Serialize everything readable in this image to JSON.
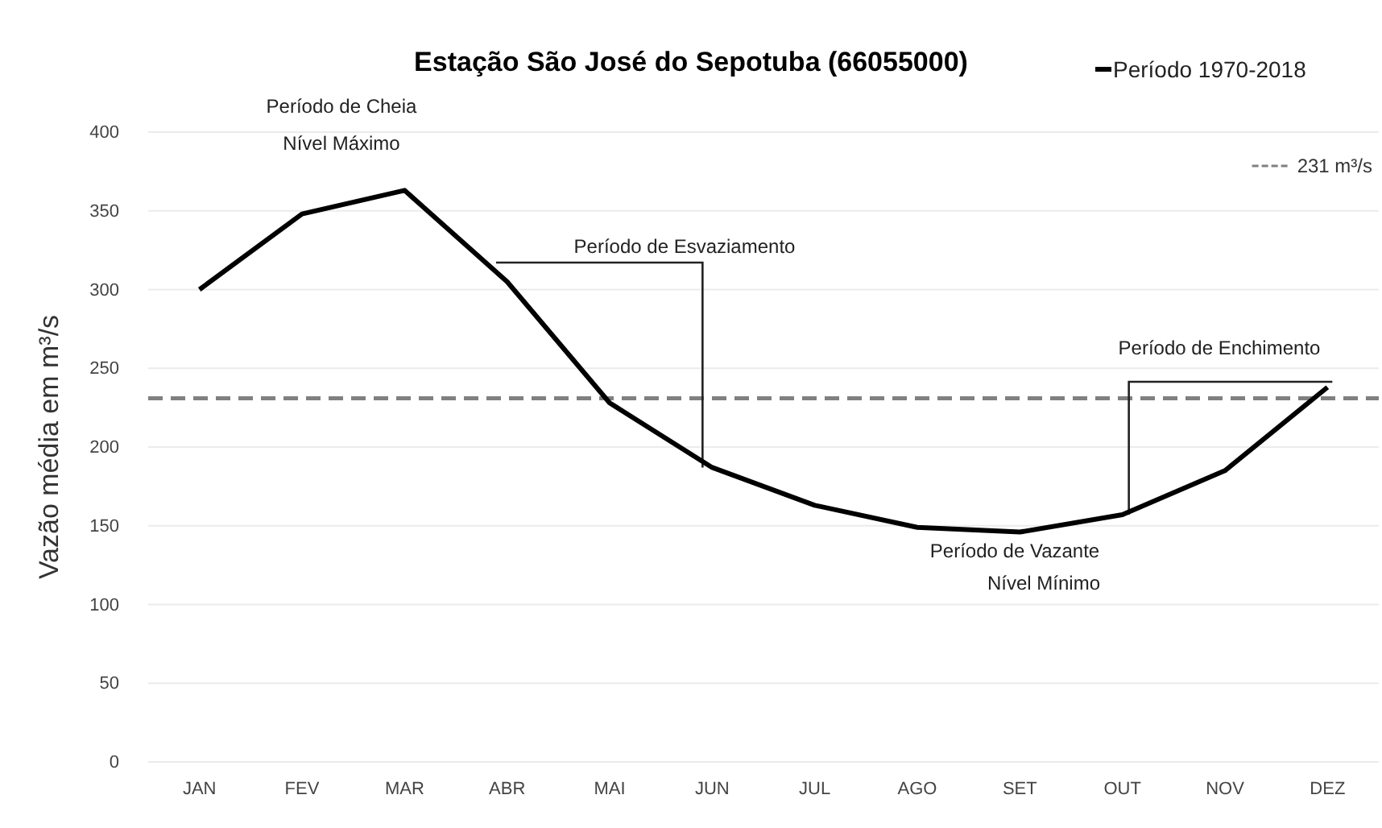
{
  "chart_data": {
    "type": "line",
    "title": "Estação São José do Sepotuba (66055000)",
    "ylabel": "Vazão média em m³/s",
    "categories": [
      "JAN",
      "FEV",
      "MAR",
      "ABR",
      "MAI",
      "JUN",
      "JUL",
      "AGO",
      "SET",
      "OUT",
      "NOV",
      "DEZ"
    ],
    "series": [
      {
        "name": "Período 1970-2018",
        "color": "#000000",
        "values": [
          300,
          348,
          363,
          305,
          228,
          187,
          163,
          149,
          146,
          157,
          185,
          238
        ]
      }
    ],
    "ylim": [
      0,
      400
    ],
    "yticks": [
      0,
      50,
      100,
      150,
      200,
      250,
      300,
      350,
      400
    ],
    "grid": "y",
    "legend": "top right",
    "marker": "none",
    "line_style": "solid",
    "ref_lines": [
      {
        "axis": "y",
        "value": 231,
        "label": "231 m³/s",
        "color": "#808080",
        "line_style": "dashed"
      }
    ],
    "annotations": [
      "Período de Cheia",
      "Nível Máximo",
      "Período de Esvaziamento",
      "Período de Enchimento",
      "Período de Vazante",
      "Nível Mínimo"
    ]
  }
}
